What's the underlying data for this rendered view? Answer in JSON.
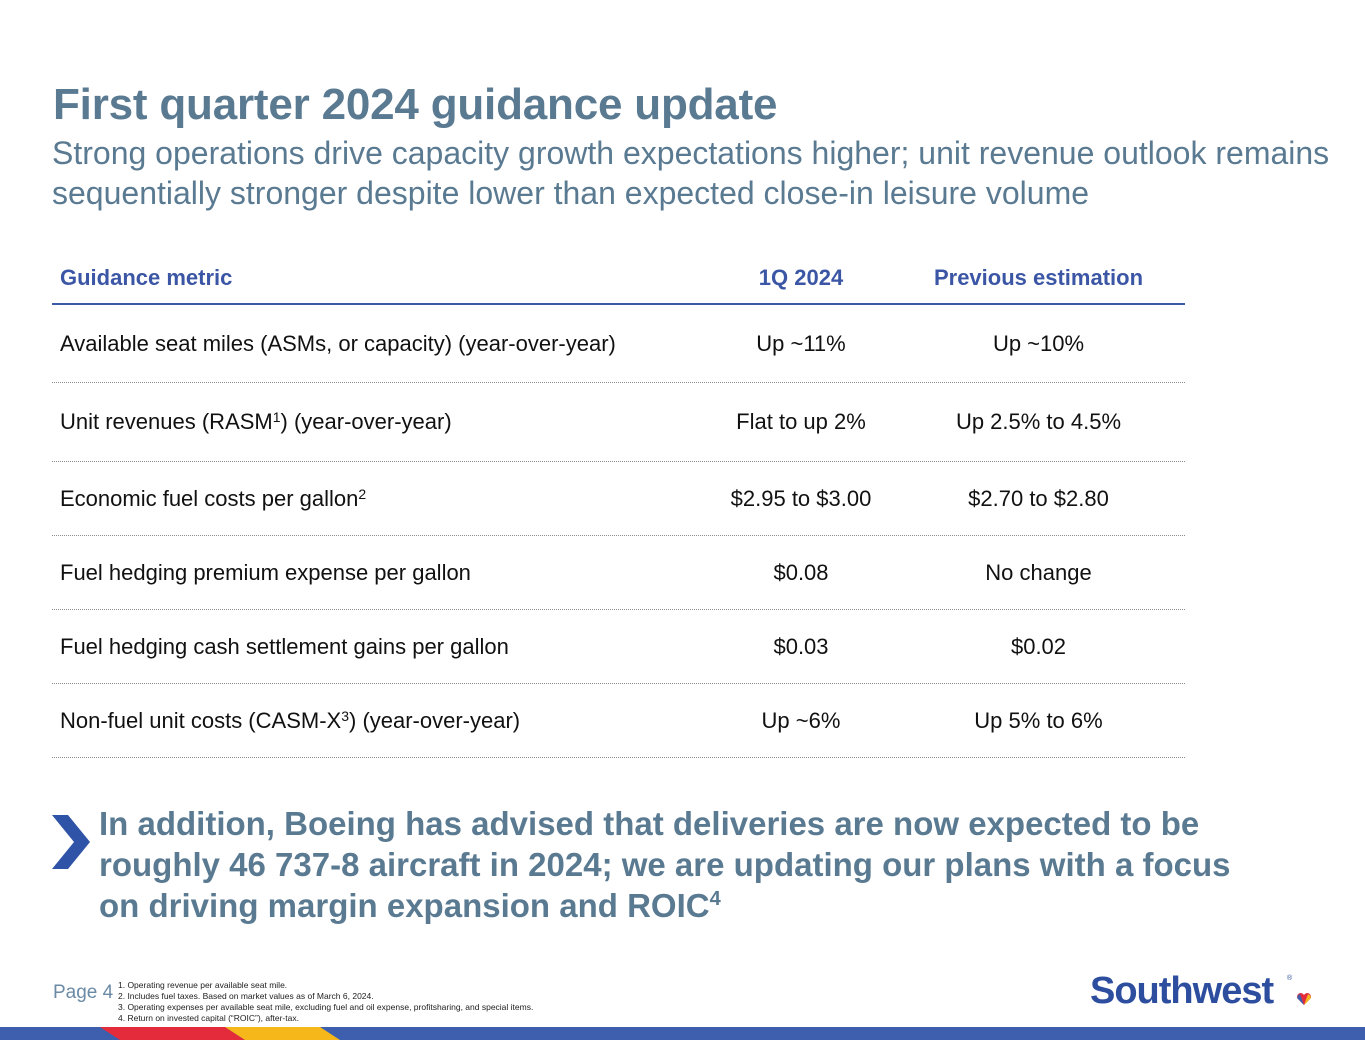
{
  "title": "First quarter 2024 guidance update",
  "subtitle": "Strong operations drive capacity growth expectations higher; unit revenue outlook remains sequentially stronger despite lower than expected close-in leisure volume",
  "table": {
    "headers": {
      "metric": "Guidance metric",
      "q1": "1Q 2024",
      "prev": "Previous estimation"
    },
    "rows": [
      {
        "metric": "Available seat miles (ASMs, or capacity) (year-over-year)",
        "metric_sup": "",
        "metric_tail": "",
        "q1": "Up ~11%",
        "prev": "Up ~10%"
      },
      {
        "metric": "Unit revenues (RASM",
        "metric_sup": "1",
        "metric_tail": ") (year-over-year)",
        "q1": "Flat to up 2%",
        "prev": "Up 2.5% to 4.5%"
      },
      {
        "metric": "Economic fuel costs per gallon",
        "metric_sup": "2",
        "metric_tail": "",
        "q1": "$2.95 to $3.00",
        "prev": "$2.70 to $2.80"
      },
      {
        "metric": "Fuel hedging premium expense per gallon",
        "metric_sup": "",
        "metric_tail": "",
        "q1": "$0.08",
        "prev": "No change"
      },
      {
        "metric": "Fuel hedging cash settlement gains per gallon",
        "metric_sup": "",
        "metric_tail": "",
        "q1": "$0.03",
        "prev": "$0.02"
      },
      {
        "metric": "Non-fuel unit costs (CASM-X",
        "metric_sup": "3",
        "metric_tail": ") (year-over-year)",
        "q1": "Up ~6%",
        "prev": "Up 5% to 6%"
      }
    ]
  },
  "callout": {
    "icon": "chevron-right-icon",
    "text": "In addition, Boeing has advised that deliveries are now expected to be roughly 46 737-8 aircraft in 2024; we are updating our plans with a focus on driving margin expansion and ROIC",
    "sup": "4"
  },
  "footer": {
    "page": "Page 4",
    "footnotes": [
      "1. Operating revenue per available seat mile.",
      "2. Includes fuel taxes. Based on market values as of March 6, 2024.",
      "3. Operating expenses per available seat mile, excluding fuel and oil expense, profitsharing, and special items.",
      "4. Return on invested capital (“ROIC”), after-tax."
    ],
    "logo_text": "Southwest",
    "logo_mark": "®"
  },
  "colors": {
    "title": "#5a7a92",
    "header_text": "#3c56a6",
    "chevron": "#2f53a6",
    "brand_blue": "#2d4d9e",
    "stripe": [
      "#3e5fae",
      "#e42b3b",
      "#f6b71a",
      "#3e5fae"
    ]
  }
}
